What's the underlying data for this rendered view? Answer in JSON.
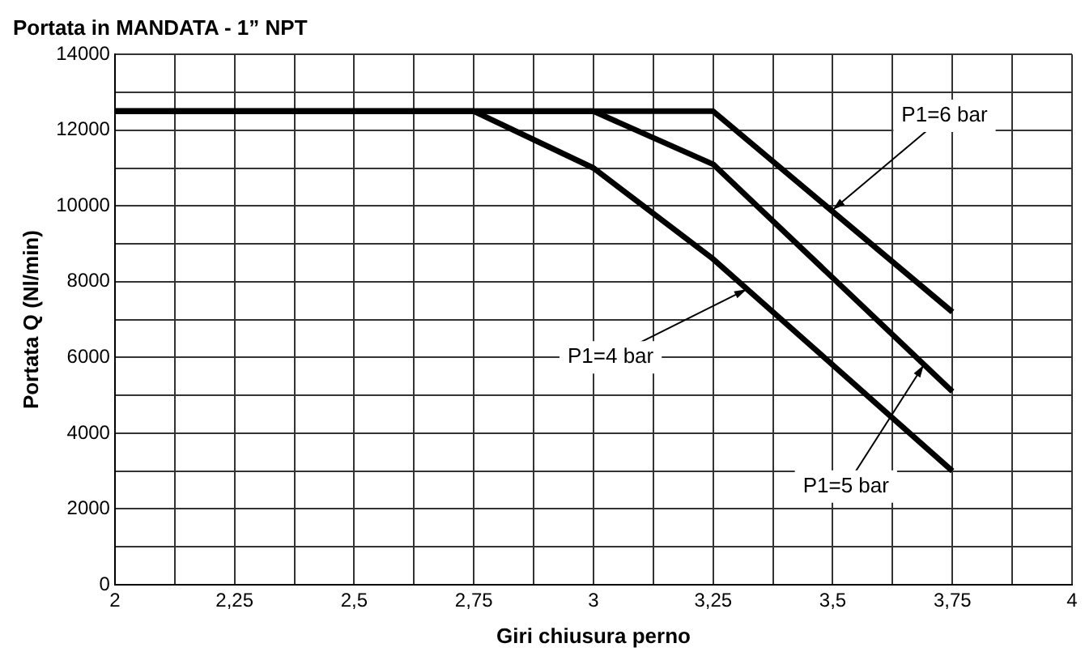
{
  "chart_data": {
    "type": "line",
    "title": "Portata in MANDATA - 1” NPT",
    "xlabel": "Giri chiusura perno",
    "ylabel": "Portata Q (Nl/min)",
    "xlim": [
      2,
      4
    ],
    "xticks": [
      2,
      {
        "value": 2.125,
        "label": null
      },
      {
        "value": 2.25,
        "label": "2,25"
      },
      {
        "value": 2.375,
        "label": null
      },
      {
        "value": 2.5,
        "label": "2,5"
      },
      {
        "value": 2.625,
        "label": null
      },
      {
        "value": 2.75,
        "label": "2,75"
      },
      {
        "value": 2.875,
        "label": null
      },
      3,
      {
        "value": 3.125,
        "label": null
      },
      {
        "value": 3.25,
        "label": "3,25"
      },
      {
        "value": 3.375,
        "label": null
      },
      {
        "value": 3.5,
        "label": "3,5"
      },
      {
        "value": 3.625,
        "label": null
      },
      {
        "value": 3.75,
        "label": "3,75"
      },
      {
        "value": 3.875,
        "label": null
      },
      4
    ],
    "ylim": [
      0,
      14000
    ],
    "yticks": [
      0,
      {
        "value": 1000,
        "label": null
      },
      2000,
      {
        "value": 3000,
        "label": null
      },
      4000,
      {
        "value": 5000,
        "label": null
      },
      6000,
      {
        "value": 7000,
        "label": null
      },
      8000,
      {
        "value": 9000,
        "label": null
      },
      10000,
      {
        "value": 11000,
        "label": null
      },
      12000,
      {
        "value": 13000,
        "label": null
      },
      14000
    ],
    "grid": true,
    "legend": false,
    "marker": "none",
    "line_style": "solid",
    "series": [
      {
        "color": "#000000",
        "x": [
          2,
          2.75,
          3,
          3.25,
          3.75
        ],
        "values": [
          12500,
          12500,
          11000,
          8600,
          3000
        ]
      },
      {
        "color": "#000000",
        "x": [
          2,
          3,
          3.25,
          3.75
        ],
        "values": [
          12500,
          12500,
          11100,
          5100
        ]
      },
      {
        "color": "#000000",
        "x": [
          2,
          3.25,
          3.75
        ],
        "values": [
          12500,
          12500,
          7200
        ]
      }
    ],
    "annotations": [
      {
        "text": "P1=6 bar",
        "x": 3.5,
        "y": 9900
      },
      {
        "text": "P1=4 bar",
        "x": 3.32,
        "y": 7800
      },
      {
        "text": "P1=5 bar",
        "x": 3.69,
        "y": 5800
      }
    ]
  }
}
